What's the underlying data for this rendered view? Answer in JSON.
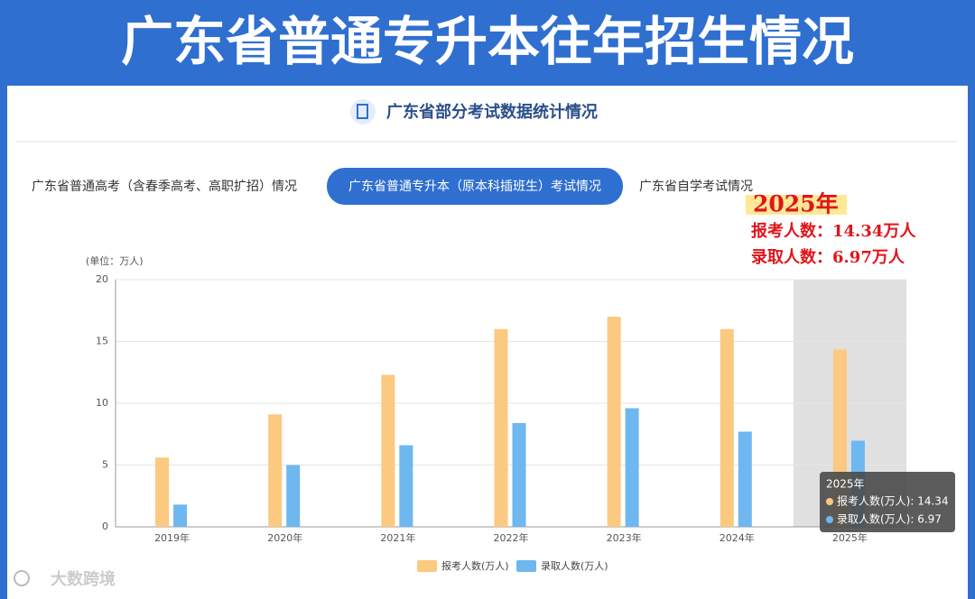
{
  "page_title": "广东省普通专升本往年招生情况",
  "section_title": "广东省部分考试数据统计情况",
  "tabs": [
    "广东省普通高考（含春季高考、高职扩招）情况",
    "广东省普通专升本（原本科插班生）考试情况",
    "广东省自学考试情况"
  ],
  "annotation": [
    "2025年",
    "报考人数：14.34万人",
    "录取人数：6.97万人"
  ],
  "watermark": "大数跨境",
  "tooltip": {
    "title": "2025年",
    "items": [
      "报考人数(万人): 14.34",
      "录取人数(万人): 6.97"
    ]
  },
  "chart_data": {
    "type": "bar",
    "unit_label": "(单位：万人)",
    "categories": [
      "2019年",
      "2020年",
      "2021年",
      "2022年",
      "2023年",
      "2024年",
      "2025年"
    ],
    "series": [
      {
        "name": "报考人数(万人)",
        "color": "#fbc97f",
        "values": [
          5.6,
          9.1,
          12.3,
          16.0,
          17.0,
          16.0,
          14.34
        ]
      },
      {
        "name": "录取人数(万人)",
        "color": "#6fb7ef",
        "values": [
          1.8,
          5.0,
          6.6,
          8.4,
          9.6,
          7.7,
          6.97
        ]
      }
    ],
    "ylim": [
      0,
      20
    ],
    "yticks": [
      0,
      5,
      10,
      15,
      20
    ],
    "grid": true,
    "highlight_category": "2025年",
    "legend": "bottom"
  }
}
